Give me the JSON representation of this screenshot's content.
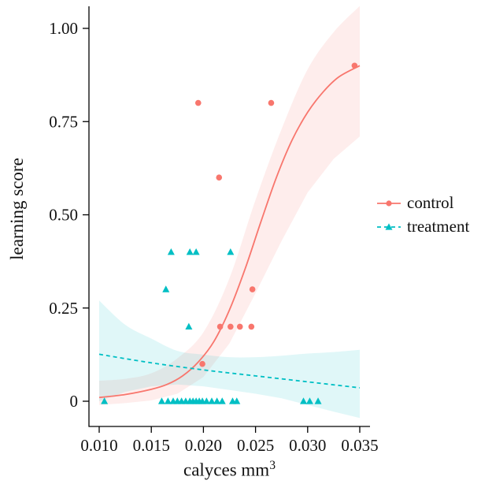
{
  "chart_data": {
    "type": "scatter",
    "title": "",
    "xlabel": "calyces mm",
    "xlabel_exponent": "3",
    "ylabel": "learning score",
    "xlim": [
      0.01,
      0.035
    ],
    "ylim": [
      0,
      1.0
    ],
    "grid": false,
    "legend_position": "right",
    "x_ticks": {
      "values": [
        0.01,
        0.015,
        0.02,
        0.025,
        0.03,
        0.035
      ],
      "labels": [
        "0.010",
        "0.015",
        "0.020",
        "0.025",
        "0.030",
        "0.035"
      ]
    },
    "y_ticks": {
      "values": [
        0,
        0.25,
        0.5,
        0.75,
        1.0
      ],
      "labels": [
        "0",
        "0.25",
        "0.50",
        "0.75",
        "1.00"
      ]
    },
    "series": [
      {
        "name": "control",
        "marker": "circle",
        "line_style": "solid",
        "color": "#F8766D",
        "band_opacity": 0.13,
        "points": [
          [
            0.0195,
            0.8
          ],
          [
            0.0265,
            0.8
          ],
          [
            0.0215,
            0.6
          ],
          [
            0.0345,
            0.9
          ],
          [
            0.0247,
            0.3
          ],
          [
            0.0216,
            0.2
          ],
          [
            0.0226,
            0.2
          ],
          [
            0.0235,
            0.2
          ],
          [
            0.0246,
            0.2
          ],
          [
            0.0199,
            0.1
          ]
        ],
        "fit_line": [
          [
            0.01,
            0.01
          ],
          [
            0.0125,
            0.018
          ],
          [
            0.015,
            0.032
          ],
          [
            0.0165,
            0.045
          ],
          [
            0.018,
            0.068
          ],
          [
            0.0195,
            0.105
          ],
          [
            0.021,
            0.16
          ],
          [
            0.0225,
            0.245
          ],
          [
            0.024,
            0.355
          ],
          [
            0.0255,
            0.48
          ],
          [
            0.027,
            0.6
          ],
          [
            0.0285,
            0.7
          ],
          [
            0.03,
            0.775
          ],
          [
            0.0315,
            0.83
          ],
          [
            0.033,
            0.87
          ],
          [
            0.035,
            0.9
          ]
        ],
        "band": [
          [
            0.01,
            -0.01,
            0.055
          ],
          [
            0.0125,
            -0.005,
            0.06
          ],
          [
            0.015,
            0.002,
            0.075
          ],
          [
            0.0175,
            0.02,
            0.115
          ],
          [
            0.02,
            0.065,
            0.185
          ],
          [
            0.0225,
            0.155,
            0.33
          ],
          [
            0.025,
            0.29,
            0.54
          ],
          [
            0.0275,
            0.43,
            0.73
          ],
          [
            0.03,
            0.56,
            0.89
          ],
          [
            0.0325,
            0.65,
            0.99
          ],
          [
            0.035,
            0.71,
            1.06
          ]
        ]
      },
      {
        "name": "treatment",
        "marker": "triangle",
        "line_style": "dashed",
        "color": "#00BFC4",
        "band_opacity": 0.12,
        "points": [
          [
            0.0169,
            0.4
          ],
          [
            0.0187,
            0.4
          ],
          [
            0.0193,
            0.4
          ],
          [
            0.0226,
            0.4
          ],
          [
            0.0164,
            0.3
          ],
          [
            0.0186,
            0.2
          ],
          [
            0.0105,
            0.0
          ],
          [
            0.016,
            0.0
          ],
          [
            0.0166,
            0.0
          ],
          [
            0.0171,
            0.0
          ],
          [
            0.0175,
            0.0
          ],
          [
            0.0179,
            0.0
          ],
          [
            0.0183,
            0.0
          ],
          [
            0.0187,
            0.0
          ],
          [
            0.019,
            0.0
          ],
          [
            0.0193,
            0.0
          ],
          [
            0.0196,
            0.0
          ],
          [
            0.0199,
            0.0
          ],
          [
            0.0203,
            0.0
          ],
          [
            0.0208,
            0.0
          ],
          [
            0.0213,
            0.0
          ],
          [
            0.0218,
            0.0
          ],
          [
            0.0228,
            0.0
          ],
          [
            0.0232,
            0.0
          ],
          [
            0.0296,
            0.0
          ],
          [
            0.0302,
            0.0
          ],
          [
            0.031,
            0.0
          ]
        ],
        "fit_line": [
          [
            0.01,
            0.126
          ],
          [
            0.015,
            0.103
          ],
          [
            0.02,
            0.084
          ],
          [
            0.025,
            0.068
          ],
          [
            0.03,
            0.052
          ],
          [
            0.035,
            0.036
          ]
        ],
        "band": [
          [
            0.01,
            0.0,
            0.27
          ],
          [
            0.0125,
            0.025,
            0.205
          ],
          [
            0.015,
            0.04,
            0.168
          ],
          [
            0.0175,
            0.045,
            0.135
          ],
          [
            0.02,
            0.04,
            0.125
          ],
          [
            0.0225,
            0.03,
            0.118
          ],
          [
            0.025,
            0.02,
            0.118
          ],
          [
            0.0275,
            0.008,
            0.122
          ],
          [
            0.03,
            -0.01,
            0.128
          ],
          [
            0.0325,
            -0.028,
            0.132
          ],
          [
            0.035,
            -0.045,
            0.138
          ]
        ]
      }
    ]
  }
}
